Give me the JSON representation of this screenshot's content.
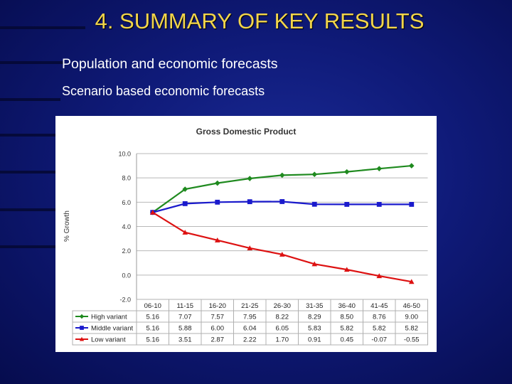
{
  "slide": {
    "title": "4. SUMMARY OF KEY RESULTS",
    "line1": "Population and economic forecasts",
    "line2": "Scenario based economic forecasts"
  },
  "chart_data": {
    "type": "line",
    "title": "Gross Domestic Product",
    "xlabel": "",
    "ylabel": "% Growth",
    "ylim": [
      -2.0,
      10.0
    ],
    "yticks": [
      "10.0",
      "8.0",
      "6.0",
      "4.0",
      "2.0",
      "0.0",
      "-2.0"
    ],
    "categories": [
      "06-10",
      "11-15",
      "16-20",
      "21-25",
      "26-30",
      "31-35",
      "36-40",
      "41-45",
      "46-50"
    ],
    "series": [
      {
        "name": "High variant",
        "color": "#1f8a1f",
        "marker": "diamond",
        "values": [
          5.16,
          7.07,
          7.57,
          7.95,
          8.22,
          8.29,
          8.5,
          8.76,
          9.0
        ],
        "labels": [
          "5.16",
          "7.07",
          "7.57",
          "7.95",
          "8.22",
          "8.29",
          "8.50",
          "8.76",
          "9.00"
        ]
      },
      {
        "name": "Middle variant",
        "color": "#1a1acc",
        "marker": "square",
        "values": [
          5.16,
          5.88,
          6.0,
          6.04,
          6.05,
          5.83,
          5.82,
          5.82,
          5.82
        ],
        "labels": [
          "5.16",
          "5.88",
          "6.00",
          "6.04",
          "6.05",
          "5.83",
          "5.82",
          "5.82",
          "5.82"
        ]
      },
      {
        "name": "Low variant",
        "color": "#dd1111",
        "marker": "triangle",
        "values": [
          5.16,
          3.51,
          2.87,
          2.22,
          1.7,
          0.91,
          0.45,
          -0.07,
          -0.55
        ],
        "labels": [
          "5.16",
          "3.51",
          "2.87",
          "2.22",
          "1.70",
          "0.91",
          "0.45",
          "-0.07",
          "-0.55"
        ]
      }
    ],
    "grid": true,
    "legend": "data-table"
  }
}
